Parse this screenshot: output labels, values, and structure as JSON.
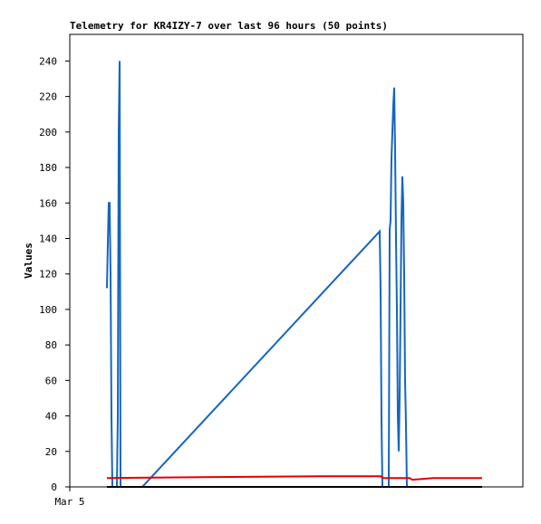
{
  "chart_data": {
    "type": "line",
    "title": "Telemetry for KR4IZY-7 over last 96 hours (50 points)",
    "y_label": "Values",
    "xlim": [
      0,
      100
    ],
    "xticks": [
      {
        "value": 0,
        "label": "Mar 5"
      }
    ],
    "ylim": [
      0,
      255
    ],
    "yticks": [
      0,
      20,
      40,
      60,
      80,
      100,
      120,
      140,
      160,
      180,
      200,
      220,
      240
    ],
    "grid": false,
    "series": [
      {
        "color": "#1565c0",
        "x": [
          8.2,
          8.4,
          8.6,
          8.8,
          9,
          9.2,
          9.4,
          10.4,
          10.6,
          10.8,
          11,
          11.2,
          16,
          68.4,
          68.6,
          68.8,
          69,
          70.4,
          70.6,
          70.8,
          71,
          71.2,
          71.4,
          71.6,
          71.8,
          72,
          72.2,
          72.4,
          72.6,
          72.8,
          73,
          73.2,
          73.4,
          73.6,
          73.8,
          74,
          74.2,
          74.4,
          75
        ],
        "values": [
          112,
          137,
          160,
          160,
          120,
          40,
          0,
          0,
          40,
          200,
          240,
          0,
          0,
          144,
          110,
          37,
          0,
          0,
          145,
          150,
          185,
          200,
          215,
          225,
          190,
          140,
          100,
          40,
          20,
          50,
          100,
          150,
          175,
          160,
          120,
          60,
          35,
          0,
          0
        ]
      },
      {
        "color": "#e00000",
        "x": [
          8.2,
          9.4,
          29,
          55.6,
          68.6,
          69.2,
          75,
          75.6,
          80.2,
          91
        ],
        "values": [
          5,
          5,
          5.5,
          6,
          6,
          5,
          5,
          4,
          5,
          5
        ]
      },
      {
        "color": "#000000",
        "x": [
          8.2,
          91
        ],
        "values": [
          0,
          0
        ]
      }
    ]
  }
}
